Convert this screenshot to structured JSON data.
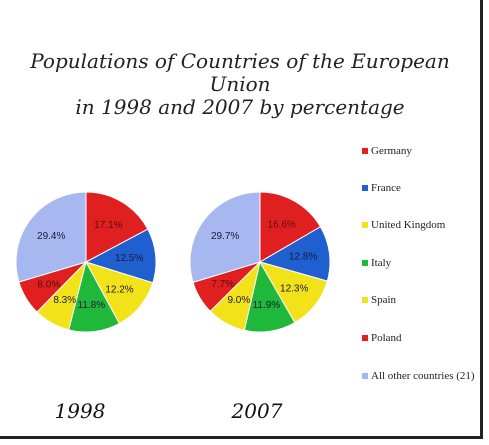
{
  "chart_data": {
    "type": "pie",
    "title": "Populations of Countries of the European Union in 1998 and 2007 by percentage",
    "title_lines": [
      "Populations of Countries of the European Union",
      "in 1998 and 2007 by percentage"
    ],
    "categories": [
      "Germany",
      "France",
      "United Kingdom",
      "Italy",
      "Spain",
      "Poland",
      "All other countries (21)"
    ],
    "category_labels": [
      "Germany",
      "France",
      "United Kingdom",
      "Italy",
      "Spain",
      "Poland",
      "All other countries (21)"
    ],
    "colors": [
      "#e02020",
      "#1f5fd0",
      "#f2e21a",
      "#1fb83a",
      "#f2e21a",
      "#e02020",
      "#a6b8ef"
    ],
    "series": [
      {
        "name": "1998",
        "values": [
          17.1,
          12.5,
          12.2,
          11.8,
          8.3,
          8.0,
          29.4
        ],
        "labels": [
          "17.1%",
          "12.5%",
          "12.2%",
          "11.8%",
          "8.3%",
          "8.0%",
          "29.4%"
        ]
      },
      {
        "name": "2007",
        "values": [
          16.6,
          12.8,
          12.3,
          11.9,
          9.0,
          7.7,
          29.7
        ],
        "labels": [
          "16.6%",
          "12.8%",
          "12.3%",
          "11.9%",
          "9.0%",
          "7.7%",
          "29.7%"
        ]
      }
    ],
    "legend_position": "right"
  }
}
